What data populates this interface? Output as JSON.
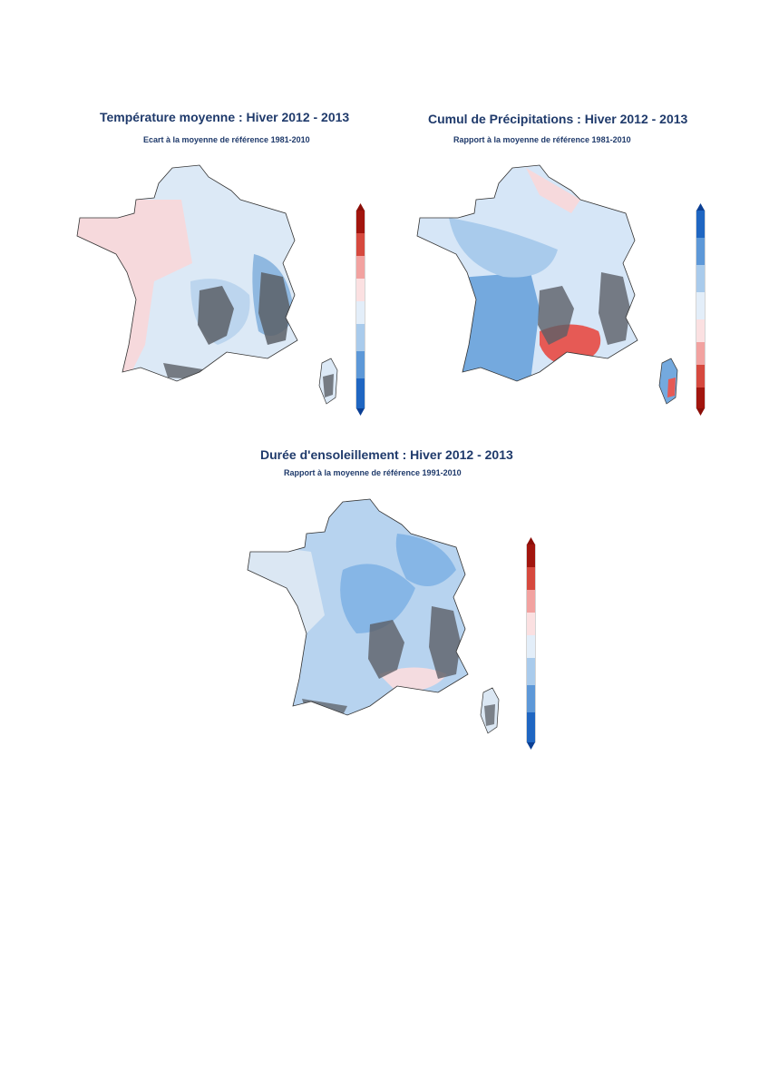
{
  "maps": [
    {
      "title": "Température moyenne : Hiver 2012 - 2013",
      "subtitle": "Ecart à la moyenne de référence 1981-2010",
      "scale_type": "diverging-red-top",
      "colors": {
        "warm": "#f6d9dc",
        "cool": "#dce9f6",
        "mid": "#bcd5ee",
        "strong": "#8fb8e0",
        "relief": "#5b5f66"
      }
    },
    {
      "title": "Cumul de Précipitations : Hiver 2012 - 2013",
      "subtitle": "Rapport à la moyenne de référence 1981-2010",
      "scale_type": "diverging-blue-top",
      "colors": {
        "light": "#d6e6f7",
        "mid": "#a9cbec",
        "wet": "#74a9de",
        "dry": "#e65a55",
        "relief": "#5b5f66"
      }
    },
    {
      "title": "Durée d'ensoleillement : Hiver 2012 - 2013",
      "subtitle": "Rapport à la moyenne de référence 1991-2010",
      "scale_type": "diverging-red-top",
      "colors": {
        "pale": "#dbe7f3",
        "light": "#b7d3ef",
        "mid": "#86b6e6",
        "pink": "#f4dce0",
        "relief": "#5b5f66"
      }
    }
  ]
}
